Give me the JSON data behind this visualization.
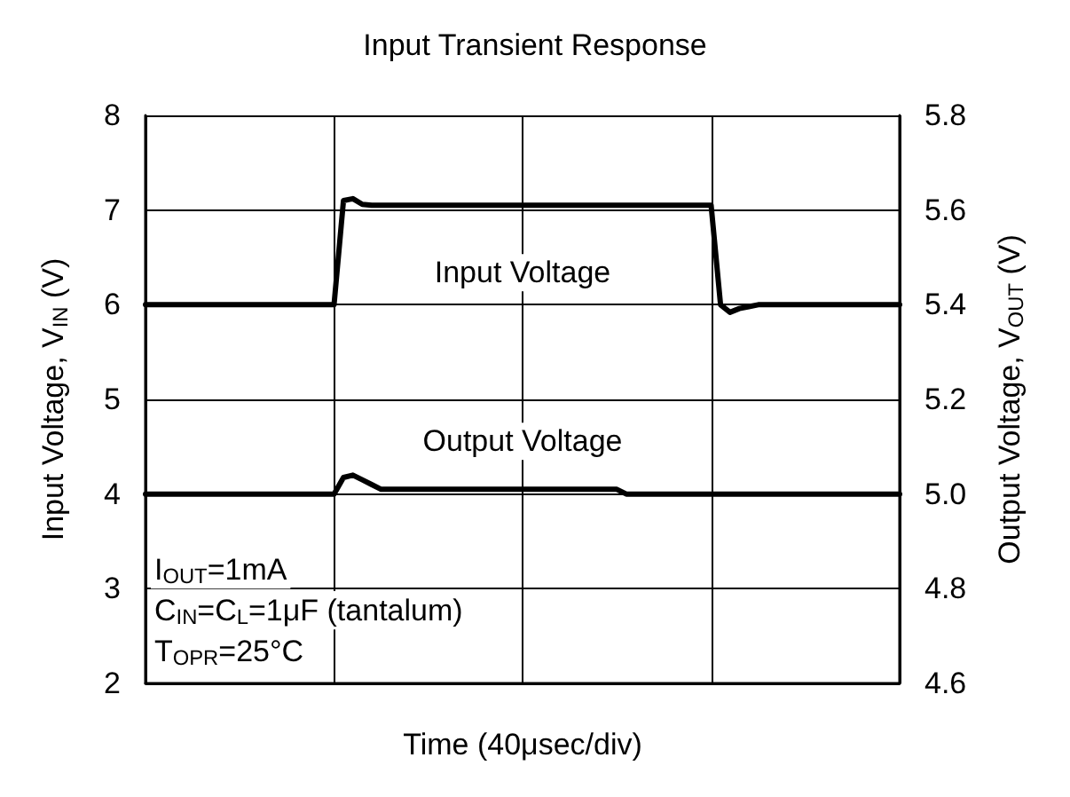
{
  "chart_data": {
    "type": "line",
    "title": "Input Transient Response",
    "xlabel": "Time (40μsec/div)",
    "ylabel": "Input Voltage, V$_{IN}$ (V)",
    "y2label": "Output Voltage, V$_{OUT}$ (V)",
    "categories": [
      null,
      null,
      null,
      null,
      null,
      null,
      null,
      null,
      null,
      null,
      null,
      null,
      null,
      null,
      null,
      null,
      null,
      null,
      null,
      null,
      null,
      null,
      null,
      null,
      null,
      null,
      null,
      null,
      null,
      null,
      null,
      null,
      null,
      null,
      null,
      null,
      null,
      null,
      null,
      null,
      null,
      null,
      null,
      null,
      null,
      null,
      null,
      null,
      null,
      null,
      null,
      null,
      null,
      null,
      null,
      null,
      null,
      null,
      null,
      null,
      null,
      null,
      null,
      null,
      null,
      null,
      null,
      null,
      null,
      null,
      null,
      null,
      null,
      null,
      null,
      null,
      null,
      null,
      null,
      null,
      null
    ],
    "ylim": [
      2,
      8
    ],
    "yticks": [
      2,
      3,
      4,
      5,
      6,
      7,
      8
    ],
    "y2lim": [
      4.6,
      5.8
    ],
    "y2ticks": [
      4.6,
      4.8,
      {
        "value": 5.0,
        "label": "5.0"
      },
      5.2,
      5.4,
      5.6,
      5.8
    ],
    "tick_labels": "y",
    "grid": true,
    "line_style": "solid",
    "series": [
      {
        "name": "Input Voltage",
        "color": "#000000",
        "values": [
          6,
          6,
          6,
          6,
          6,
          6,
          6,
          6,
          6,
          6,
          6,
          6,
          6,
          6,
          6,
          6,
          6,
          6,
          6,
          6,
          6,
          7.1,
          7.12,
          7.06,
          7.05,
          7.05,
          7.05,
          7.05,
          7.05,
          7.05,
          7.05,
          7.05,
          7.05,
          7.05,
          7.05,
          7.05,
          7.05,
          7.05,
          7.05,
          7.05,
          7.05,
          7.05,
          7.05,
          7.05,
          7.05,
          7.05,
          7.05,
          7.05,
          7.05,
          7.05,
          7.05,
          7.05,
          7.05,
          7.05,
          7.05,
          7.05,
          7.05,
          7.05,
          7.05,
          7.05,
          7.05,
          6.0,
          5.92,
          5.96,
          5.98,
          6,
          6,
          6,
          6,
          6,
          6,
          6,
          6,
          6,
          6,
          6,
          6,
          6,
          6,
          6,
          6
        ]
      },
      {
        "name": "Output Voltage",
        "color": "#000000",
        "axis": "y2",
        "values": [
          5.0,
          5.0,
          5.0,
          5.0,
          5.0,
          5.0,
          5.0,
          5.0,
          5.0,
          5.0,
          5.0,
          5.0,
          5.0,
          5.0,
          5.0,
          5.0,
          5.0,
          5.0,
          5.0,
          5.0,
          5.0,
          5.035,
          5.04,
          5.03,
          5.02,
          5.01,
          5.01,
          5.01,
          5.01,
          5.01,
          5.01,
          5.01,
          5.01,
          5.01,
          5.01,
          5.01,
          5.01,
          5.01,
          5.01,
          5.01,
          5.01,
          5.01,
          5.01,
          5.01,
          5.01,
          5.01,
          5.01,
          5.01,
          5.01,
          5.01,
          5.01,
          5.0,
          5.0,
          5.0,
          5.0,
          5.0,
          5.0,
          5.0,
          5.0,
          5.0,
          5.0,
          5.0,
          5.0,
          5.0,
          5.0,
          5.0,
          5.0,
          5.0,
          5.0,
          5.0,
          5.0,
          5.0,
          5.0,
          5.0,
          5.0,
          5.0,
          5.0,
          5.0,
          5.0,
          5.0,
          5.0
        ]
      }
    ],
    "annotations": [
      "I$_{OUT}$=1mA",
      "C$_{IN}$=C$_{L}$=1μF (tantalum)",
      "T$_{OPR}$=25°C"
    ]
  }
}
